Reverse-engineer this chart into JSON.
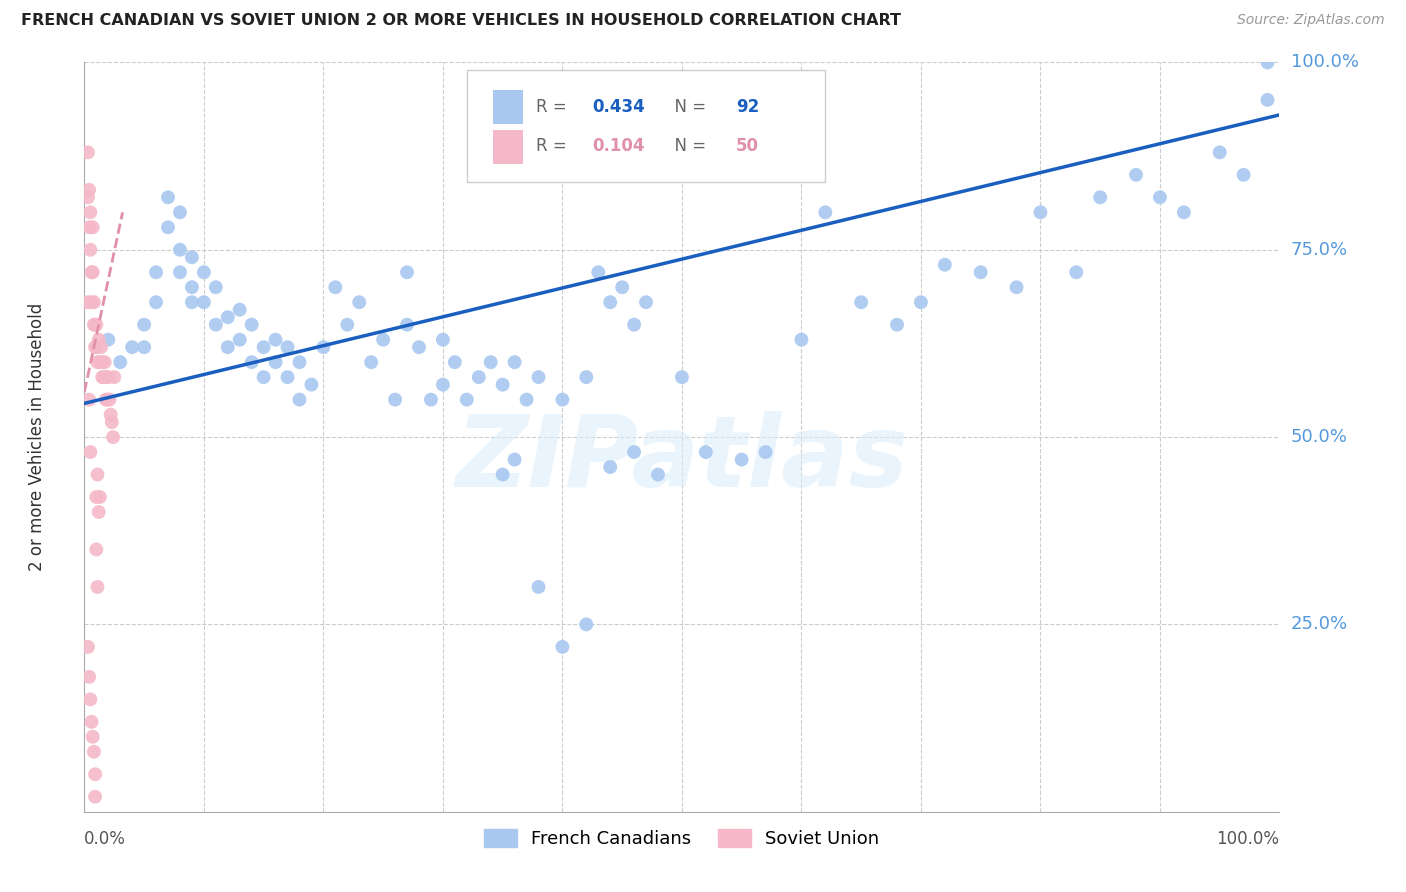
{
  "title": "FRENCH CANADIAN VS SOVIET UNION 2 OR MORE VEHICLES IN HOUSEHOLD CORRELATION CHART",
  "source": "Source: ZipAtlas.com",
  "ylabel": "2 or more Vehicles in Household",
  "watermark": "ZIPatlas",
  "blue_color": "#A8C8F0",
  "pink_color": "#F5B8C8",
  "trend_blue": "#1A5FBF",
  "trend_pink": "#E090A8",
  "right_label_color": "#5599DD",
  "title_color": "#222222",
  "grid_color": "#CCCCCC",
  "background": "#FFFFFF",
  "fc_x": [
    0.02,
    0.03,
    0.04,
    0.05,
    0.05,
    0.06,
    0.06,
    0.07,
    0.07,
    0.08,
    0.08,
    0.08,
    0.09,
    0.09,
    0.09,
    0.1,
    0.1,
    0.11,
    0.11,
    0.12,
    0.12,
    0.13,
    0.13,
    0.14,
    0.14,
    0.15,
    0.15,
    0.16,
    0.16,
    0.17,
    0.17,
    0.18,
    0.18,
    0.19,
    0.2,
    0.21,
    0.22,
    0.23,
    0.24,
    0.25,
    0.26,
    0.27,
    0.27,
    0.28,
    0.29,
    0.3,
    0.3,
    0.31,
    0.32,
    0.33,
    0.34,
    0.35,
    0.36,
    0.37,
    0.38,
    0.4,
    0.42,
    0.43,
    0.44,
    0.45,
    0.46,
    0.47,
    0.48,
    0.5,
    0.52,
    0.55,
    0.57,
    0.6,
    0.62,
    0.65,
    0.68,
    0.7,
    0.72,
    0.75,
    0.78,
    0.8,
    0.83,
    0.85,
    0.88,
    0.9,
    0.92,
    0.95,
    0.97,
    0.99,
    0.35,
    0.36,
    0.38,
    0.4,
    0.42,
    0.44,
    0.46,
    0.99
  ],
  "fc_y": [
    0.63,
    0.6,
    0.62,
    0.65,
    0.62,
    0.72,
    0.68,
    0.78,
    0.82,
    0.75,
    0.72,
    0.8,
    0.7,
    0.74,
    0.68,
    0.72,
    0.68,
    0.65,
    0.7,
    0.62,
    0.66,
    0.63,
    0.67,
    0.6,
    0.65,
    0.58,
    0.62,
    0.6,
    0.63,
    0.58,
    0.62,
    0.55,
    0.6,
    0.57,
    0.62,
    0.7,
    0.65,
    0.68,
    0.6,
    0.63,
    0.55,
    0.72,
    0.65,
    0.62,
    0.55,
    0.63,
    0.57,
    0.6,
    0.55,
    0.58,
    0.6,
    0.57,
    0.6,
    0.55,
    0.58,
    0.55,
    0.58,
    0.72,
    0.68,
    0.7,
    0.65,
    0.68,
    0.45,
    0.58,
    0.48,
    0.47,
    0.48,
    0.63,
    0.8,
    0.68,
    0.65,
    0.68,
    0.73,
    0.72,
    0.7,
    0.8,
    0.72,
    0.82,
    0.85,
    0.82,
    0.8,
    0.88,
    0.85,
    1.0,
    0.45,
    0.47,
    0.3,
    0.22,
    0.25,
    0.46,
    0.48,
    0.95
  ],
  "su_x": [
    0.003,
    0.003,
    0.004,
    0.004,
    0.005,
    0.005,
    0.006,
    0.006,
    0.007,
    0.007,
    0.008,
    0.008,
    0.009,
    0.009,
    0.01,
    0.01,
    0.011,
    0.012,
    0.013,
    0.014,
    0.015,
    0.015,
    0.016,
    0.017,
    0.018,
    0.018,
    0.019,
    0.02,
    0.021,
    0.022,
    0.023,
    0.024,
    0.025,
    0.01,
    0.011,
    0.012,
    0.013,
    0.003,
    0.004,
    0.005,
    0.006,
    0.007,
    0.008,
    0.009,
    0.009,
    0.01,
    0.011,
    0.003,
    0.004,
    0.005
  ],
  "su_y": [
    0.88,
    0.82,
    0.78,
    0.83,
    0.75,
    0.8,
    0.72,
    0.68,
    0.78,
    0.72,
    0.68,
    0.65,
    0.65,
    0.62,
    0.62,
    0.65,
    0.6,
    0.63,
    0.6,
    0.62,
    0.6,
    0.58,
    0.58,
    0.6,
    0.58,
    0.55,
    0.55,
    0.58,
    0.55,
    0.53,
    0.52,
    0.5,
    0.58,
    0.42,
    0.45,
    0.4,
    0.42,
    0.22,
    0.18,
    0.15,
    0.12,
    0.1,
    0.08,
    0.05,
    0.02,
    0.35,
    0.3,
    0.68,
    0.55,
    0.48
  ],
  "ytick_labels": [
    "25.0%",
    "50.0%",
    "75.0%",
    "100.0%"
  ],
  "ytick_values": [
    0.25,
    0.5,
    0.75,
    1.0
  ],
  "xtick_values": [
    0.0,
    0.1,
    0.2,
    0.3,
    0.4,
    0.5,
    0.6,
    0.7,
    0.8,
    0.9,
    1.0
  ],
  "trend_blue_x0": 0.0,
  "trend_blue_y0": 0.545,
  "trend_blue_x1": 1.0,
  "trend_blue_y1": 0.93,
  "trend_pink_x0": 0.0,
  "trend_pink_y0": 0.62,
  "trend_pink_x1": 0.05,
  "trend_pink_y1": 0.67
}
